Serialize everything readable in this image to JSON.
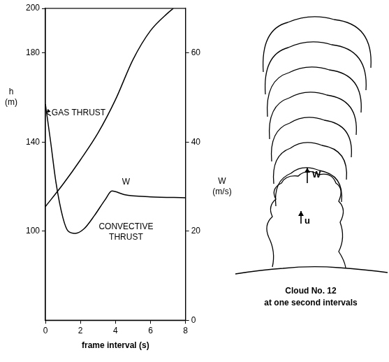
{
  "chart_data": {
    "type": "line",
    "xlabel": "frame interval (s)",
    "ylabel": "h (m)",
    "y2label": "W (m/s)",
    "xlim": [
      0,
      8
    ],
    "xticks": [
      0,
      2,
      4,
      6,
      8
    ],
    "ylim": [
      60,
      200
    ],
    "yticks": [
      100,
      140,
      180,
      200
    ],
    "y2lim": [
      0,
      70
    ],
    "y2ticks": [
      0,
      20,
      40,
      60
    ],
    "grid": false,
    "series": [
      {
        "name": "h",
        "axis": "y",
        "color": "#000000",
        "x": [
          0,
          1,
          2,
          3,
          4,
          5,
          6,
          7,
          7.3
        ],
        "values": [
          111,
          121,
          132,
          144,
          159,
          177,
          190,
          198,
          200
        ]
      },
      {
        "name": "W",
        "axis": "y2",
        "color": "#000000",
        "x": [
          0,
          0.3,
          0.6,
          1,
          1.3,
          1.7,
          2.2,
          2.8,
          3.4,
          3.8,
          4.5,
          6,
          8
        ],
        "values": [
          48.5,
          40,
          31,
          23,
          20,
          19.5,
          20.5,
          23.5,
          27,
          29,
          28.2,
          27.7,
          27.5
        ]
      }
    ],
    "annotations": [
      "GAS THRUST",
      "CONVECTIVE THRUST",
      "W"
    ]
  },
  "diagram": {
    "caption": "Cloud No. 12",
    "subcaption": "at one second intervals",
    "labels": [
      "W",
      "u"
    ]
  }
}
